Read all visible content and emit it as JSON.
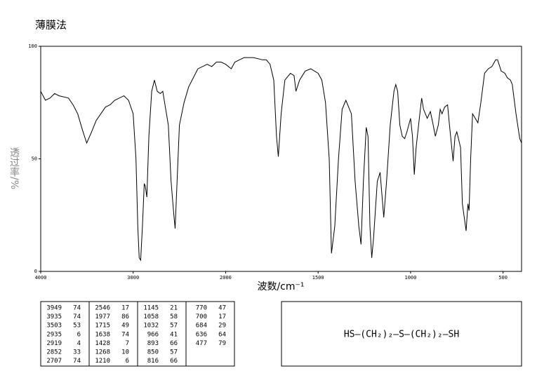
{
  "chart_data": {
    "type": "line",
    "title": "薄膜法",
    "xlabel": "波数/cm⁻¹",
    "ylabel": "透过率/%",
    "xlim": [
      4000,
      400
    ],
    "ylim": [
      0,
      100
    ],
    "x_scale_break": 2000,
    "xticks": [
      4000,
      3000,
      2000,
      1500,
      1000,
      500
    ],
    "yticks": [
      0,
      50,
      100
    ],
    "color": "#000000",
    "x": [
      4000,
      3949,
      3900,
      3850,
      3800,
      3700,
      3650,
      3600,
      3550,
      3503,
      3450,
      3400,
      3350,
      3300,
      3250,
      3200,
      3150,
      3100,
      3050,
      3000,
      2970,
      2950,
      2935,
      2919,
      2900,
      2880,
      2870,
      2852,
      2830,
      2800,
      2770,
      2740,
      2707,
      2680,
      2660,
      2620,
      2590,
      2560,
      2546,
      2530,
      2500,
      2450,
      2400,
      2350,
      2300,
      2250,
      2200,
      2150,
      2100,
      2050,
      2000,
      1970,
      1950,
      1900,
      1850,
      1800,
      1780,
      1760,
      1740,
      1725,
      1715,
      1700,
      1680,
      1650,
      1630,
      1620,
      1600,
      1570,
      1540,
      1500,
      1480,
      1460,
      1440,
      1428,
      1410,
      1390,
      1370,
      1350,
      1320,
      1300,
      1280,
      1268,
      1255,
      1240,
      1230,
      1220,
      1210,
      1200,
      1180,
      1165,
      1145,
      1130,
      1110,
      1090,
      1080,
      1070,
      1058,
      1045,
      1032,
      1020,
      1000,
      990,
      980,
      970,
      950,
      940,
      930,
      910,
      893,
      880,
      866,
      850,
      840,
      830,
      816,
      800,
      790,
      770,
      760,
      750,
      730,
      720,
      700,
      690,
      684,
      675,
      665,
      650,
      636,
      620,
      600,
      580,
      560,
      540,
      530,
      510,
      490,
      477,
      460,
      450,
      430,
      410,
      400
    ],
    "values": [
      80,
      76,
      77,
      79,
      78,
      77,
      74,
      70,
      63,
      57,
      62,
      67,
      70,
      73,
      74,
      76,
      77,
      78,
      76,
      70,
      50,
      20,
      6,
      5,
      20,
      39,
      38,
      33,
      60,
      80,
      85,
      80,
      79,
      80,
      75,
      65,
      40,
      25,
      19,
      35,
      65,
      75,
      82,
      86,
      90,
      91,
      92,
      91,
      93,
      93,
      92,
      90,
      93,
      95,
      95,
      94,
      94,
      92,
      85,
      60,
      51,
      70,
      85,
      88,
      87,
      80,
      85,
      89,
      90,
      88,
      85,
      75,
      50,
      8,
      20,
      50,
      72,
      76,
      70,
      40,
      20,
      12,
      40,
      64,
      60,
      20,
      6,
      15,
      40,
      44,
      24,
      40,
      65,
      80,
      83,
      80,
      65,
      60,
      59,
      62,
      68,
      60,
      43,
      55,
      70,
      77,
      72,
      68,
      71,
      66,
      60,
      65,
      72,
      70,
      73,
      74,
      65,
      49,
      60,
      62,
      55,
      30,
      18,
      30,
      27,
      50,
      70,
      68,
      66,
      75,
      88,
      90,
      91,
      94,
      94,
      89,
      88,
      86,
      85,
      83,
      70,
      59,
      57
    ]
  },
  "peak_table": [
    [
      [
        "3949",
        "74"
      ],
      [
        "3935",
        "74"
      ],
      [
        "3503",
        "53"
      ],
      [
        "2935",
        "6"
      ],
      [
        "2919",
        "4"
      ],
      [
        "2852",
        "33"
      ],
      [
        "2707",
        "74"
      ]
    ],
    [
      [
        "2546",
        "17"
      ],
      [
        "1977",
        "86"
      ],
      [
        "1715",
        "49"
      ],
      [
        "1638",
        "74"
      ],
      [
        "1428",
        "7"
      ],
      [
        "1268",
        "10"
      ],
      [
        "1210",
        "6"
      ]
    ],
    [
      [
        "1145",
        "21"
      ],
      [
        "1058",
        "58"
      ],
      [
        "1032",
        "57"
      ],
      [
        "966",
        "41"
      ],
      [
        "893",
        "66"
      ],
      [
        "850",
        "57"
      ],
      [
        "816",
        "66"
      ]
    ],
    [
      [
        "770",
        "47"
      ],
      [
        "700",
        "17"
      ],
      [
        "684",
        "29"
      ],
      [
        "636",
        "64"
      ],
      [
        "477",
        "79"
      ]
    ]
  ],
  "structure": "HS—(CH₂)₂—S—(CH₂)₂—SH"
}
